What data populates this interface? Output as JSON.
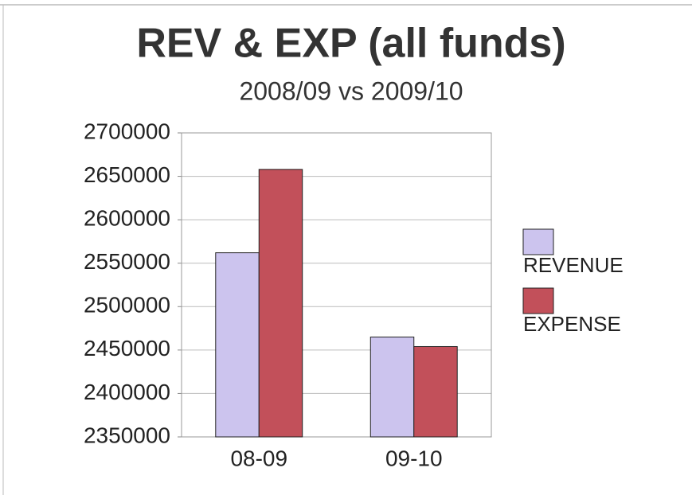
{
  "chart_data": {
    "type": "bar",
    "title": "REV & EXP (all funds)",
    "subtitle": "2008/09 vs 2009/10",
    "categories": [
      "08-09",
      "09-10"
    ],
    "series": [
      {
        "name": "REVENUE",
        "color": "#ccc4ee",
        "values": [
          2562000,
          2465000
        ]
      },
      {
        "name": "EXPENSE",
        "color": "#c2505a",
        "values": [
          2658000,
          2454000
        ]
      }
    ],
    "ylim": [
      2350000,
      2700000
    ],
    "yticks": [
      2350000,
      2400000,
      2450000,
      2500000,
      2550000,
      2600000,
      2650000,
      2700000
    ],
    "grid": true,
    "legend": "right"
  }
}
